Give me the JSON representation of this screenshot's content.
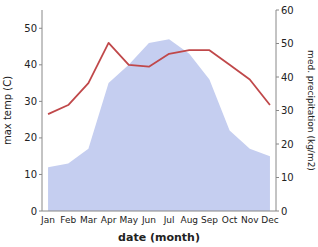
{
  "chart_data": {
    "type": "line",
    "categories": [
      "Jan",
      "Feb",
      "Mar",
      "Apr",
      "May",
      "Jun",
      "Jul",
      "Aug",
      "Sep",
      "Oct",
      "Nov",
      "Dec"
    ],
    "series": [
      {
        "type": "area",
        "color": "#c5cef0",
        "values": [
          12,
          13,
          17,
          35,
          40,
          46,
          47,
          43,
          36,
          22,
          17,
          15
        ]
      },
      {
        "type": "line",
        "color": "#c0484a",
        "values": [
          26.5,
          29,
          35,
          46,
          40,
          39.5,
          43,
          44,
          44,
          40,
          36,
          29
        ]
      }
    ],
    "xlabel": "date (month)",
    "ylabel": "max temp (C)",
    "y2label": "med. precipitation (kg/m2)",
    "ylim": [
      0,
      55
    ],
    "yticks": [
      0,
      10,
      20,
      30,
      40,
      50
    ],
    "y2lim": [
      0,
      60
    ],
    "y2ticks": [
      0,
      10,
      20,
      30,
      40,
      50,
      60
    ],
    "grid": false
  }
}
